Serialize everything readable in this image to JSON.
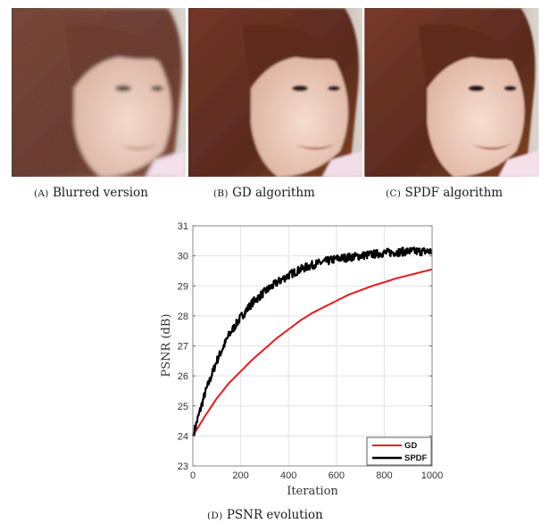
{
  "figure": {
    "panels": [
      {
        "id": "A",
        "letter": "(A)",
        "caption": "Blurred version",
        "description": "noisy blurred face portrait"
      },
      {
        "id": "B",
        "letter": "(B)",
        "caption": "GD algorithm",
        "description": "face portrait restored by GD"
      },
      {
        "id": "C",
        "letter": "(C)",
        "caption": "SPDF algorithm",
        "description": "face portrait restored by SPDF"
      }
    ],
    "plot_caption": {
      "letter": "(D)",
      "caption": "PSNR evolution"
    }
  },
  "chart_data": {
    "type": "line",
    "title": "",
    "xlabel": "Iteration",
    "ylabel": "PSNR (dB)",
    "xlim": [
      0,
      1000
    ],
    "ylim": [
      23,
      31
    ],
    "xticks": [
      0,
      200,
      400,
      600,
      800,
      1000
    ],
    "yticks": [
      23,
      24,
      25,
      26,
      27,
      28,
      29,
      30,
      31
    ],
    "grid": true,
    "legend_position": "lower right",
    "x": [
      0,
      50,
      100,
      150,
      200,
      250,
      300,
      350,
      400,
      450,
      500,
      550,
      600,
      650,
      700,
      750,
      800,
      850,
      900,
      950,
      1000
    ],
    "series": [
      {
        "name": "GD",
        "color": "#e8191c",
        "values": [
          24.0,
          24.65,
          25.25,
          25.75,
          26.15,
          26.55,
          26.9,
          27.25,
          27.55,
          27.85,
          28.1,
          28.3,
          28.5,
          28.7,
          28.85,
          29.0,
          29.12,
          29.25,
          29.35,
          29.45,
          29.55
        ]
      },
      {
        "name": "SPDF",
        "color": "#000000",
        "values": [
          24.0,
          25.4,
          26.5,
          27.35,
          27.95,
          28.45,
          28.8,
          29.1,
          29.35,
          29.55,
          29.7,
          29.8,
          29.9,
          29.95,
          30.0,
          30.05,
          30.1,
          30.12,
          30.15,
          30.15,
          30.15
        ],
        "noisy": true
      }
    ]
  }
}
